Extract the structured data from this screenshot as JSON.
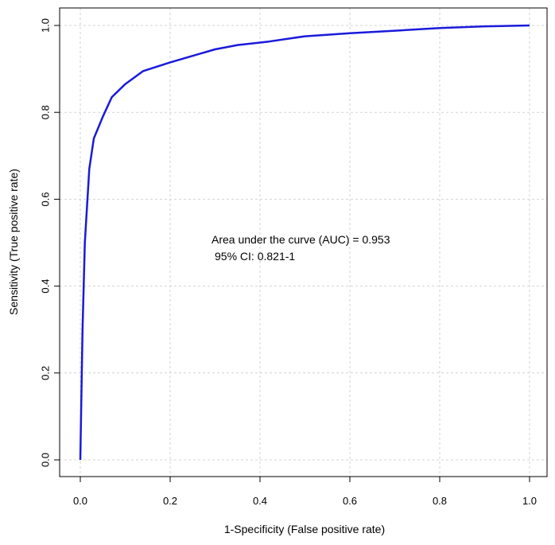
{
  "chart_data": {
    "type": "line",
    "title": "",
    "xlabel": "1-Specificity (False positive rate)",
    "ylabel": "Sensitivity (True positive rate)",
    "xlim": [
      0,
      1
    ],
    "ylim": [
      0,
      1
    ],
    "xticks": [
      "0.0",
      "0.2",
      "0.4",
      "0.6",
      "0.8",
      "1.0"
    ],
    "yticks": [
      "0.0",
      "0.2",
      "0.4",
      "0.6",
      "0.8",
      "1.0"
    ],
    "grid": true,
    "line_color": "#1a1adb",
    "series": [
      {
        "x": [
          0.0,
          0.005,
          0.01,
          0.02,
          0.03,
          0.05,
          0.07,
          0.1,
          0.14,
          0.2,
          0.25,
          0.3,
          0.35,
          0.42,
          0.5,
          0.6,
          0.7,
          0.8,
          0.9,
          1.0
        ],
        "y": [
          0.0,
          0.3,
          0.5,
          0.67,
          0.74,
          0.79,
          0.835,
          0.865,
          0.895,
          0.915,
          0.93,
          0.945,
          0.955,
          0.963,
          0.975,
          0.982,
          0.988,
          0.994,
          0.998,
          1.0
        ]
      }
    ],
    "annotations": [
      "Area under the curve (AUC) = 0.953",
      "95% CI: 0.821-1"
    ]
  }
}
